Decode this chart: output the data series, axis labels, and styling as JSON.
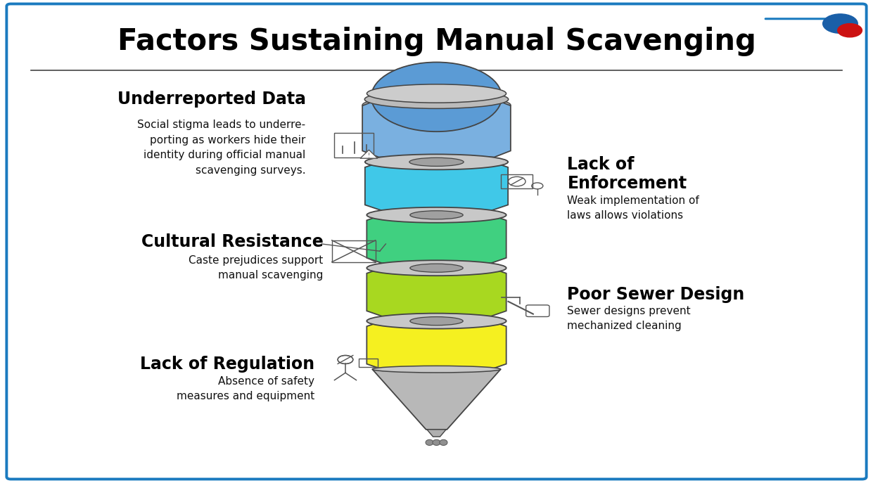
{
  "title": "Factors Sustaining Manual Scavenging",
  "background_color": "#ffffff",
  "border_color": "#1a7abf",
  "title_color": "#000000",
  "separator_color": "#444444",
  "left_factors": [
    {
      "heading": "Underreported Data",
      "body": "Social stigma leads to underre-\nporting as workers hide their\nidentity during official manual\nscavenging surveys.",
      "hy": 0.795,
      "by": 0.695
    },
    {
      "heading": "Cultural Resistance",
      "body": "Caste prejudices support\nmanual scavenging",
      "hy": 0.5,
      "by": 0.445
    },
    {
      "heading": "Lack of Regulation",
      "body": "Absence of safety\nmeasures and equipment",
      "hy": 0.245,
      "by": 0.195
    }
  ],
  "right_factors": [
    {
      "heading": "Lack of\nEnforcement",
      "body": "Weak implementation of\nlaws allows violations",
      "hy": 0.64,
      "by": 0.57
    },
    {
      "heading": "Poor Sewer Design",
      "body": "Sewer designs prevent\nmechanized cleaning",
      "hy": 0.39,
      "by": 0.34
    }
  ],
  "arrow_color": "#1a7abf",
  "logo_colors": [
    "#1a5fa8",
    "#cc1111"
  ]
}
